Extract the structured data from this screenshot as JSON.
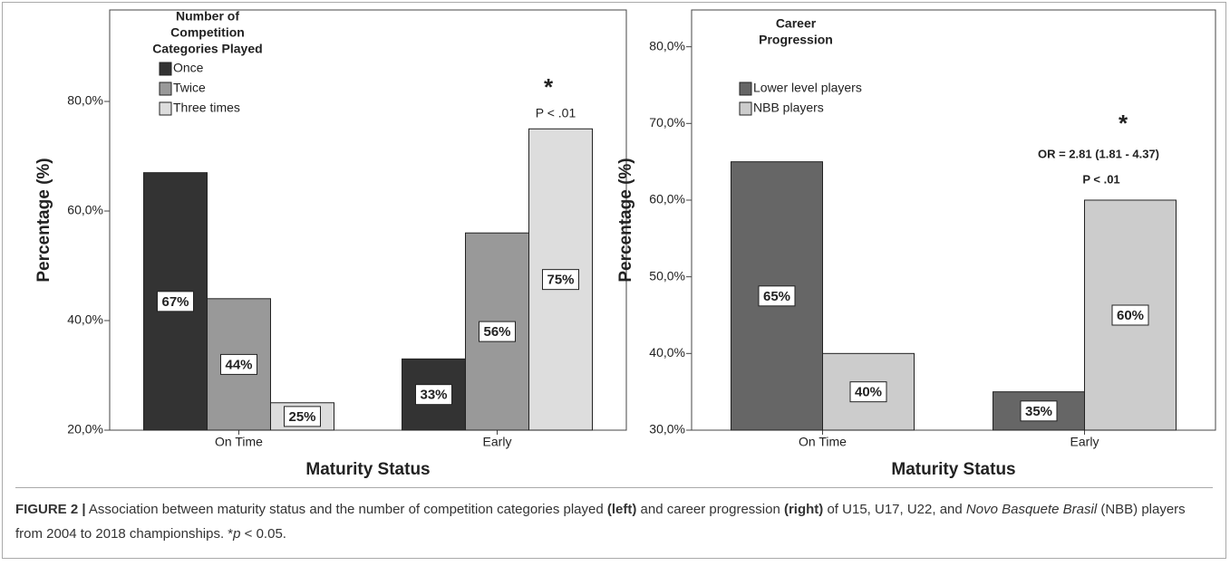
{
  "chart_data": [
    {
      "type": "bar",
      "legend_title": [
        "Number of",
        "Competition",
        "Categories Played"
      ],
      "x_label": "Maturity Status",
      "y_label": "Percentage (%)",
      "categories": [
        "On Time",
        "Early"
      ],
      "series": [
        {
          "name": "Once",
          "color": "#333333",
          "values": [
            67,
            33
          ],
          "value_labels": [
            "67%",
            "33%"
          ]
        },
        {
          "name": "Twice",
          "color": "#999999",
          "values": [
            44,
            56
          ],
          "value_labels": [
            "44%",
            "56%"
          ]
        },
        {
          "name": "Three times",
          "color": "#dddddd",
          "values": [
            25,
            75
          ],
          "value_labels": [
            "25%",
            "75%"
          ]
        }
      ],
      "ylim": [
        20,
        96.7
      ],
      "yticks": [
        {
          "value": 20,
          "label": "20,0%"
        },
        {
          "value": 40,
          "label": "40,0%"
        },
        {
          "value": 60,
          "label": "60,0%"
        },
        {
          "value": 80,
          "label": "80,0%"
        }
      ],
      "annotations": [
        "*",
        "P < .01"
      ]
    },
    {
      "type": "bar",
      "legend_title": [
        "Career",
        "Progression"
      ],
      "x_label": "Maturity Status",
      "y_label": "Percentage (%)",
      "categories": [
        "On Time",
        "Early"
      ],
      "series": [
        {
          "name": "Lower level players",
          "color": "#666666",
          "values": [
            65,
            35
          ],
          "value_labels": [
            "65%",
            "35%"
          ]
        },
        {
          "name": "NBB players",
          "color": "#cccccc",
          "values": [
            40,
            60
          ],
          "value_labels": [
            "40%",
            "60%"
          ]
        }
      ],
      "ylim": [
        30,
        84.8
      ],
      "yticks": [
        {
          "value": 30,
          "label": "30,0%"
        },
        {
          "value": 40,
          "label": "40,0%"
        },
        {
          "value": 50,
          "label": "50,0%"
        },
        {
          "value": 60,
          "label": "60,0%"
        },
        {
          "value": 70,
          "label": "70,0%"
        },
        {
          "value": 80,
          "label": "80,0%"
        }
      ],
      "annotations": [
        "*",
        "OR = 2.81 (1.81 - 4.37)",
        "P < .01"
      ]
    }
  ],
  "caption": [
    "FIGURE 2 |",
    " Association between maturity status and the number of competition categories played ",
    "(left)",
    " and career progression ",
    "(right)",
    " of U15, U17, U22, and ",
    "Novo Basquete Brasil",
    " (NBB) players from 2004 to 2018 championships. *",
    "p",
    " < 0.05."
  ]
}
